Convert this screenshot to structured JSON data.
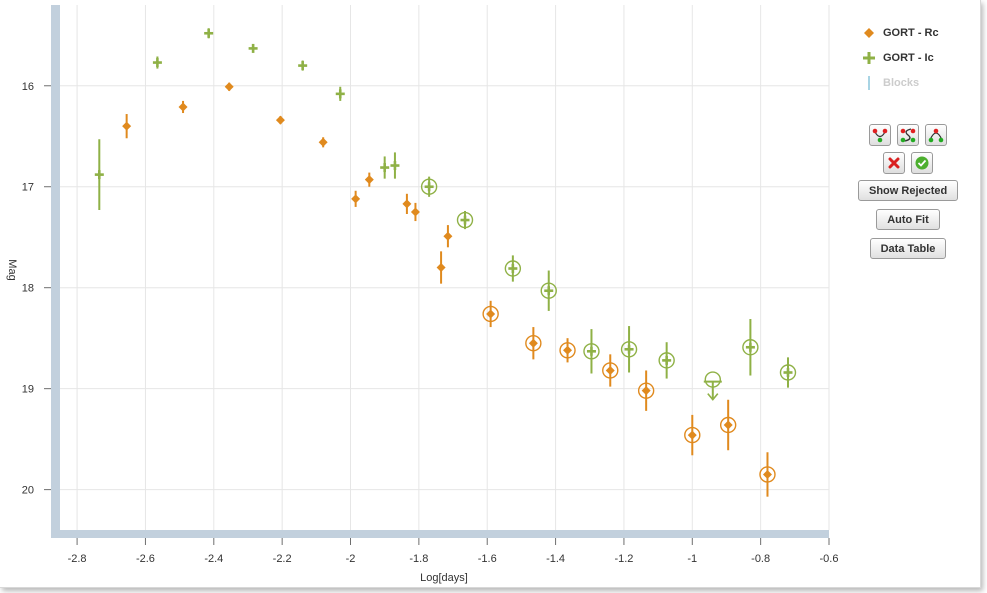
{
  "chart_data": {
    "type": "scatter",
    "xlabel": "Log[days]",
    "ylabel": "Mag",
    "xlim": [
      -2.85,
      -0.6
    ],
    "ylim": [
      20.4,
      15.2
    ],
    "y_inverted": true,
    "xticks": [
      "-2.8",
      "-2.6",
      "-2.4",
      "-2.2",
      "-2",
      "-1.8",
      "-1.6",
      "-1.4",
      "-1.2",
      "-1",
      "-0.8",
      "-0.6"
    ],
    "yticks": [
      "16",
      "17",
      "18",
      "19",
      "20"
    ],
    "grid": true,
    "legend_position": "right",
    "series": [
      {
        "name": "GORT - Rc",
        "marker": "diamond",
        "color": "#e08a1e",
        "points": [
          {
            "x": -2.655,
            "y": 16.4,
            "err": 0.12,
            "circled": false
          },
          {
            "x": -2.49,
            "y": 16.21,
            "err": 0.06,
            "circled": false
          },
          {
            "x": -2.355,
            "y": 16.01,
            "err": 0.04,
            "circled": false
          },
          {
            "x": -2.205,
            "y": 16.34,
            "err": 0.04,
            "circled": false
          },
          {
            "x": -2.08,
            "y": 16.56,
            "err": 0.05,
            "circled": false
          },
          {
            "x": -1.985,
            "y": 17.12,
            "err": 0.08,
            "circled": false
          },
          {
            "x": -1.945,
            "y": 16.93,
            "err": 0.07,
            "circled": false
          },
          {
            "x": -1.835,
            "y": 17.17,
            "err": 0.1,
            "circled": false
          },
          {
            "x": -1.81,
            "y": 17.25,
            "err": 0.09,
            "circled": false
          },
          {
            "x": -1.735,
            "y": 17.8,
            "err": 0.16,
            "circled": false
          },
          {
            "x": -1.715,
            "y": 17.49,
            "err": 0.11,
            "circled": false
          },
          {
            "x": -1.59,
            "y": 18.26,
            "err": 0.13,
            "circled": true
          },
          {
            "x": -1.465,
            "y": 18.55,
            "err": 0.16,
            "circled": true
          },
          {
            "x": -1.365,
            "y": 18.62,
            "err": 0.12,
            "circled": true
          },
          {
            "x": -1.24,
            "y": 18.82,
            "err": 0.16,
            "circled": true
          },
          {
            "x": -1.135,
            "y": 19.02,
            "err": 0.2,
            "circled": true
          },
          {
            "x": -1.0,
            "y": 19.46,
            "err": 0.2,
            "circled": true
          },
          {
            "x": -0.895,
            "y": 19.36,
            "err": 0.25,
            "circled": true
          },
          {
            "x": -0.78,
            "y": 19.85,
            "err": 0.22,
            "circled": true
          }
        ]
      },
      {
        "name": "GORT - Ic",
        "marker": "cross",
        "color": "#8fb146",
        "points": [
          {
            "x": -2.735,
            "y": 16.88,
            "err": 0.35,
            "circled": false,
            "upper_limit": false
          },
          {
            "x": -2.565,
            "y": 15.77,
            "err": 0.06,
            "circled": false,
            "upper_limit": false
          },
          {
            "x": -2.415,
            "y": 15.48,
            "err": 0.05,
            "circled": false,
            "upper_limit": false
          },
          {
            "x": -2.285,
            "y": 15.63,
            "err": 0.04,
            "circled": false,
            "upper_limit": false
          },
          {
            "x": -2.14,
            "y": 15.8,
            "err": 0.05,
            "circled": false,
            "upper_limit": false
          },
          {
            "x": -2.03,
            "y": 16.08,
            "err": 0.07,
            "circled": false,
            "upper_limit": false
          },
          {
            "x": -1.9,
            "y": 16.81,
            "err": 0.11,
            "circled": false,
            "upper_limit": false
          },
          {
            "x": -1.87,
            "y": 16.79,
            "err": 0.13,
            "circled": false,
            "upper_limit": false
          },
          {
            "x": -1.77,
            "y": 17.0,
            "err": 0.1,
            "circled": true,
            "upper_limit": false
          },
          {
            "x": -1.665,
            "y": 17.33,
            "err": 0.09,
            "circled": true,
            "upper_limit": false
          },
          {
            "x": -1.525,
            "y": 17.81,
            "err": 0.13,
            "circled": true,
            "upper_limit": false
          },
          {
            "x": -1.42,
            "y": 18.03,
            "err": 0.2,
            "circled": true,
            "upper_limit": false
          },
          {
            "x": -1.295,
            "y": 18.63,
            "err": 0.22,
            "circled": true,
            "upper_limit": false
          },
          {
            "x": -1.185,
            "y": 18.61,
            "err": 0.23,
            "circled": true,
            "upper_limit": false
          },
          {
            "x": -1.075,
            "y": 18.72,
            "err": 0.18,
            "circled": true,
            "upper_limit": false
          },
          {
            "x": -0.94,
            "y": 18.93,
            "err": 0.0,
            "circled": true,
            "upper_limit": true
          },
          {
            "x": -0.83,
            "y": 18.59,
            "err": 0.28,
            "circled": true,
            "upper_limit": false
          },
          {
            "x": -0.72,
            "y": 18.84,
            "err": 0.15,
            "circled": true,
            "upper_limit": false
          }
        ]
      }
    ]
  },
  "legend": {
    "items": [
      {
        "label": "GORT - Rc",
        "icon": "orange-diamond-icon",
        "color": "#e08a1e"
      },
      {
        "label": "GORT - Ic",
        "icon": "green-cross-icon",
        "color": "#8fb146"
      },
      {
        "label": "Blocks",
        "icon": "blue-bar-icon",
        "color": "#a8d4e4"
      }
    ]
  },
  "toolbar": {
    "icons": [
      "fit-curve-a-icon",
      "fit-curve-s-icon",
      "fit-curve-arch-icon"
    ],
    "reject_icon": "red-x-icon",
    "accept_icon": "green-check-icon",
    "show_rejected": "Show Rejected",
    "auto_fit": "Auto Fit",
    "data_table": "Data Table"
  },
  "colors": {
    "axis_bar": "#c2d0dd",
    "grid": "#e6e6e6",
    "rc": "#e08a1e",
    "ic": "#8fb146"
  }
}
